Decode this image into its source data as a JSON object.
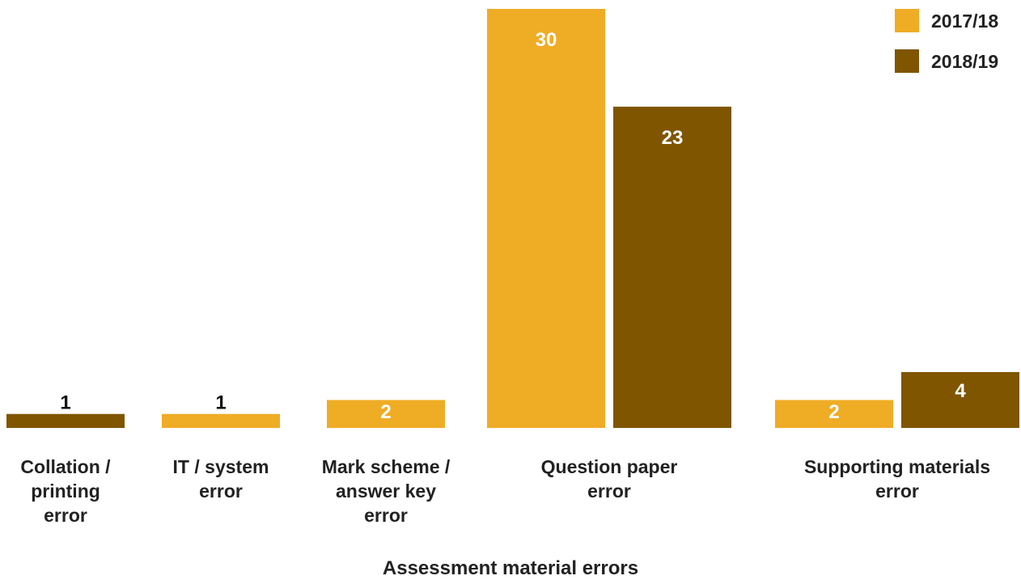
{
  "chart_data": {
    "type": "bar",
    "title": "",
    "xlabel": "Assessment material errors",
    "ylabel": "",
    "ylim": [
      0,
      30
    ],
    "grid": false,
    "legend_position": "top-right",
    "categories": [
      [
        "Collation /",
        "printing",
        "error"
      ],
      [
        "IT / system",
        "error"
      ],
      [
        "Mark scheme /",
        "answer key",
        "error"
      ],
      [
        "Question paper",
        "error"
      ],
      [
        "Supporting materials",
        "error"
      ]
    ],
    "series": [
      {
        "name": "2017/18",
        "color": "#EFAC25",
        "values": [
          null,
          1,
          2,
          30,
          2
        ]
      },
      {
        "name": "2018/19",
        "color": "#7F5500",
        "values": [
          1,
          null,
          null,
          23,
          4
        ]
      }
    ]
  }
}
